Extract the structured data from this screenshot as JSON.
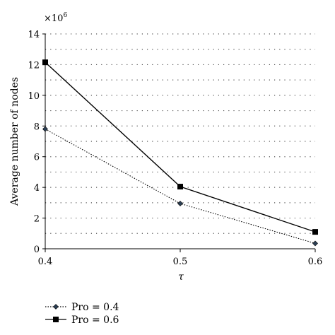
{
  "chart_data": {
    "type": "line",
    "xlabel": "τ",
    "ylabel": "Average number of nodes",
    "y_multiplier": "×10",
    "y_multiplier_exp": "6",
    "xlim": [
      0.4,
      0.6
    ],
    "ylim": [
      0,
      14
    ],
    "x_ticks": [
      "0.4",
      "0.5",
      "0.6"
    ],
    "y_ticks": [
      "0",
      "2",
      "4",
      "6",
      "8",
      "10",
      "12",
      "14"
    ],
    "grid": "horizontal dotted",
    "legend_position": "bottom-left",
    "x": [
      0.4,
      0.5,
      0.6
    ],
    "series": [
      {
        "name": "Pro = 0.4",
        "values": [
          7.8,
          2.95,
          0.35
        ],
        "line": "dotted",
        "marker": "diamond",
        "color": "#000000"
      },
      {
        "name": "Pro = 0.6",
        "values": [
          12.15,
          4.05,
          1.1
        ],
        "line": "solid",
        "marker": "square",
        "color": "#000000"
      }
    ]
  }
}
